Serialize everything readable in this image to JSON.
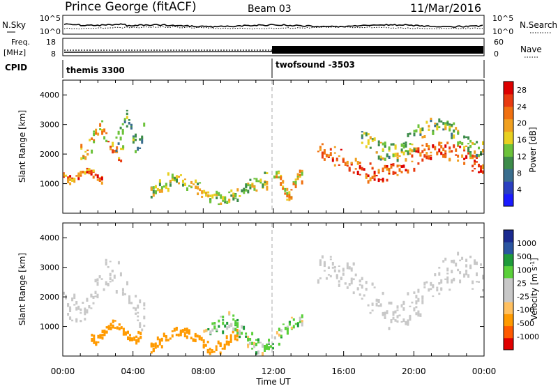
{
  "header": {
    "station": "Prince George (fitACF)",
    "beam": "Beam 03",
    "date": "11/Mar/2016"
  },
  "colors": {
    "power_scale": [
      "#1a1aff",
      "#2a3fc0",
      "#3a6e8e",
      "#3d8c4a",
      "#6cc23a",
      "#e8d020",
      "#f0a020",
      "#f07010",
      "#e83a10",
      "#dd0000"
    ],
    "velocity_scale": [
      "#e00000",
      "#ff5a00",
      "#ff9a00",
      "#ffc060",
      "#c8c8c8",
      "#c8c8c8",
      "#5ad03a",
      "#1e9a3a",
      "#2a55a0",
      "#1a2a90"
    ],
    "ground_scatter": "#c8c8c8"
  },
  "time_axis": {
    "label": "Time UT",
    "ticks": [
      "00:00",
      "04:00",
      "08:00",
      "12:00",
      "16:00",
      "20:00",
      "00:00"
    ]
  },
  "nsky_panel": {
    "left_label": "N.Sky",
    "left_ticks": [
      "10^5",
      "10^0"
    ],
    "right_ticks": [
      "10^5",
      "10^0"
    ],
    "right_label": "N.Search"
  },
  "freq_panel": {
    "left_label_1": "Freq.",
    "left_label_2": "[MHz]",
    "left_ticks": [
      "18",
      "8"
    ],
    "right_ticks": [
      "60",
      "0"
    ],
    "right_label": "Nave"
  },
  "cpid_panel": {
    "label": "CPID",
    "mode_1": "themis 3300",
    "mode_2": "twofsound -3503"
  },
  "chart_data": [
    {
      "type": "heatmap",
      "title": "",
      "xlabel": "",
      "ylabel": "Slant Range [km]",
      "xlim": [
        0,
        24
      ],
      "ylim": [
        0,
        4500
      ],
      "y_ticks": [
        "1000",
        "2000",
        "3000",
        "4000"
      ],
      "colorbar": {
        "label": "Power [dB]",
        "ticks": [
          "4",
          "8",
          "12",
          "16",
          "20",
          "24",
          "28"
        ],
        "range": [
          0,
          30
        ]
      },
      "echo_bands": [
        {
          "t_start": 0.0,
          "t_end": 2.3,
          "range_start": 1100,
          "range_end": 1550,
          "power": 22
        },
        {
          "t_start": 1.0,
          "t_end": 3.5,
          "range_start": 1850,
          "range_end": 3100,
          "power": 20
        },
        {
          "t_start": 3.0,
          "t_end": 4.7,
          "range_start": 2200,
          "range_end": 3400,
          "power": 12
        },
        {
          "t_start": 5.0,
          "t_end": 11.7,
          "range_start": 350,
          "range_end": 1300,
          "power": 15
        },
        {
          "t_start": 12.0,
          "t_end": 13.7,
          "range_start": 500,
          "range_end": 1500,
          "power": 18
        },
        {
          "t_start": 14.5,
          "t_end": 24.0,
          "range_start": 1150,
          "range_end": 2400,
          "power": 24
        },
        {
          "t_start": 17.0,
          "t_end": 24.0,
          "range_start": 1900,
          "range_end": 3200,
          "power": 14
        }
      ]
    },
    {
      "type": "heatmap",
      "title": "",
      "xlabel": "Time UT",
      "ylabel": "Slant Range [km]",
      "xlim": [
        0,
        24
      ],
      "ylim": [
        0,
        4500
      ],
      "y_ticks": [
        "1000",
        "2000",
        "3000",
        "4000"
      ],
      "colorbar": {
        "label": "Velocity [m s^-1]",
        "ticks": [
          "1000",
          "500",
          "100",
          "25",
          "-25",
          "-100",
          "-500",
          "-1000"
        ],
        "range": [
          -1000,
          1000
        ]
      },
      "echo_bands": [
        {
          "t_start": 0.0,
          "t_end": 4.7,
          "range_start": 1100,
          "range_end": 3300,
          "velocity": 0
        },
        {
          "t_start": 1.6,
          "t_end": 4.5,
          "range_start": 500,
          "range_end": 1200,
          "velocity": -300
        },
        {
          "t_start": 5.0,
          "t_end": 10.0,
          "range_start": 200,
          "range_end": 1000,
          "velocity": -200
        },
        {
          "t_start": 8.0,
          "t_end": 13.7,
          "range_start": 200,
          "range_end": 1400,
          "velocity": 50
        },
        {
          "t_start": 14.5,
          "t_end": 24.0,
          "range_start": 1150,
          "range_end": 3300,
          "velocity": 0
        }
      ]
    }
  ]
}
